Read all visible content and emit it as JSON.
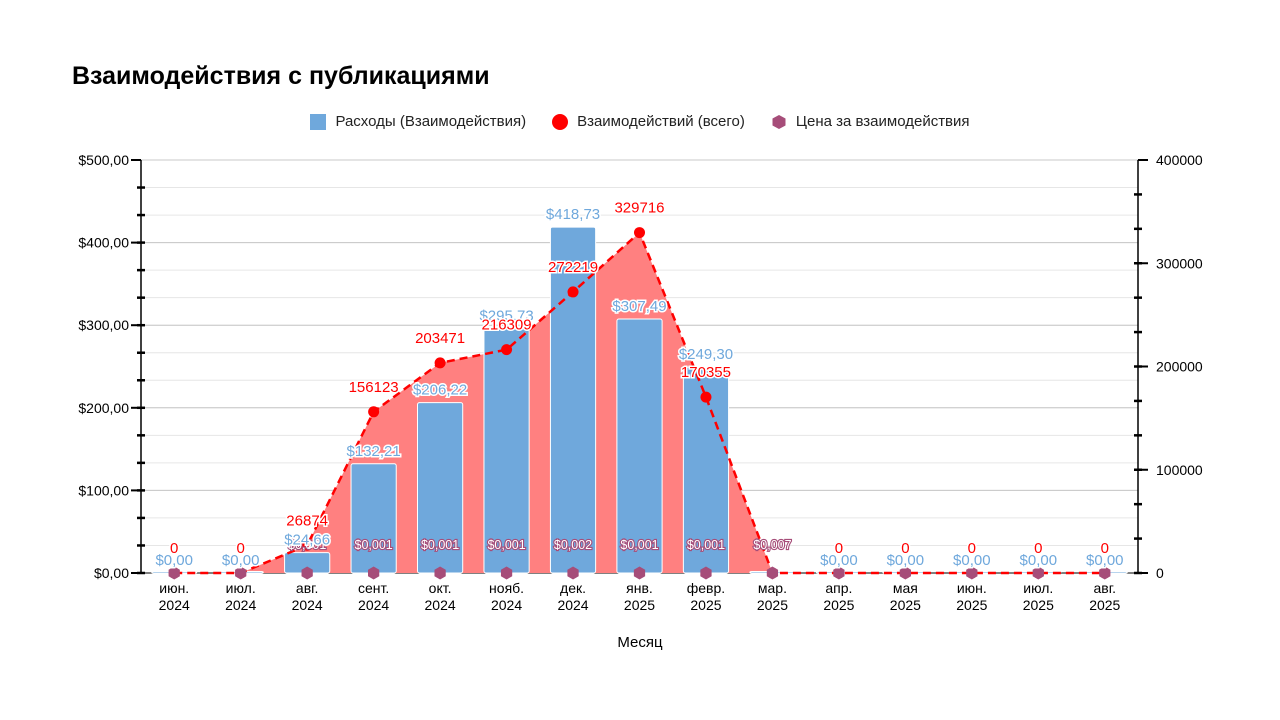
{
  "title": "Взаимодействия с публикациями",
  "legend": {
    "spend": "Расходы (Взаимодействия)",
    "engagements": "Взаимодействий (всего)",
    "cost": "Цена за взаимодействия"
  },
  "chart_data": {
    "type": "bar",
    "title": "Взаимодействия с публикациями",
    "xlabel": "Месяц",
    "categories": [
      [
        "июн.",
        "2024"
      ],
      [
        "июл.",
        "2024"
      ],
      [
        "авг.",
        "2024"
      ],
      [
        "сент.",
        "2024"
      ],
      [
        "окт.",
        "2024"
      ],
      [
        "нояб.",
        "2024"
      ],
      [
        "дек.",
        "2024"
      ],
      [
        "янв.",
        "2025"
      ],
      [
        "февр.",
        "2025"
      ],
      [
        "мар.",
        "2025"
      ],
      [
        "апр.",
        "2025"
      ],
      [
        "мая",
        "2025"
      ],
      [
        "июн.",
        "2025"
      ],
      [
        "июл.",
        "2025"
      ],
      [
        "авг.",
        "2025"
      ]
    ],
    "series": [
      {
        "name": "Расходы (Взаимодействия)",
        "type": "bar",
        "axis": "left",
        "color": "#6fa8dc",
        "values": [
          0,
          0,
          24.66,
          132.21,
          206.22,
          295.73,
          418.73,
          307.49,
          249.3,
          0,
          0,
          0,
          0,
          0,
          0
        ],
        "labels": [
          "$0,00",
          "$0,00",
          "$24,66",
          "$132,21",
          "$206,22",
          "$295,73",
          "$418,73",
          "$307,49",
          "$249,30",
          "",
          "$0,00",
          "$0,00",
          "$0,00",
          "$0,00",
          "$0,00"
        ]
      },
      {
        "name": "Взаимодействий (всего)",
        "type": "line",
        "axis": "right",
        "color": "#ff0000",
        "area_color": "#ff8080",
        "values": [
          0,
          0,
          26874,
          156123,
          203471,
          216309,
          272219,
          329716,
          170355,
          0,
          0,
          0,
          0,
          0,
          0
        ],
        "labels": [
          "0",
          "0",
          "26874",
          "156123",
          "203471",
          "216309",
          "272219",
          "329716",
          "170355",
          "",
          "0",
          "0",
          "0",
          "0",
          "0"
        ]
      },
      {
        "name": "Цена за взаимодействия",
        "type": "marker",
        "axis": "left",
        "color": "#a64d79",
        "values": [
          0,
          0,
          0.001,
          0.001,
          0.001,
          0.001,
          0.002,
          0.001,
          0.001,
          0.007,
          0,
          0,
          0,
          0,
          0
        ],
        "labels": [
          "",
          "",
          "$0,001",
          "$0,001",
          "$0,001",
          "$0,001",
          "$0,002",
          "$0,001",
          "$0,001",
          "$0,007",
          "",
          "",
          "",
          "",
          ""
        ]
      }
    ],
    "y_left": {
      "ylim": [
        0,
        500
      ],
      "ticks": [
        0,
        100,
        200,
        300,
        400,
        500
      ],
      "tick_labels": [
        "$0,00",
        "$100,00",
        "$200,00",
        "$300,00",
        "$400,00",
        "$500,00"
      ]
    },
    "y_right": {
      "ylim": [
        0,
        400000
      ],
      "ticks": [
        0,
        100000,
        200000,
        300000,
        400000
      ],
      "tick_labels": [
        "0",
        "100000",
        "200000",
        "300000",
        "400000"
      ]
    },
    "grid": true,
    "legend_position": "top-center"
  }
}
